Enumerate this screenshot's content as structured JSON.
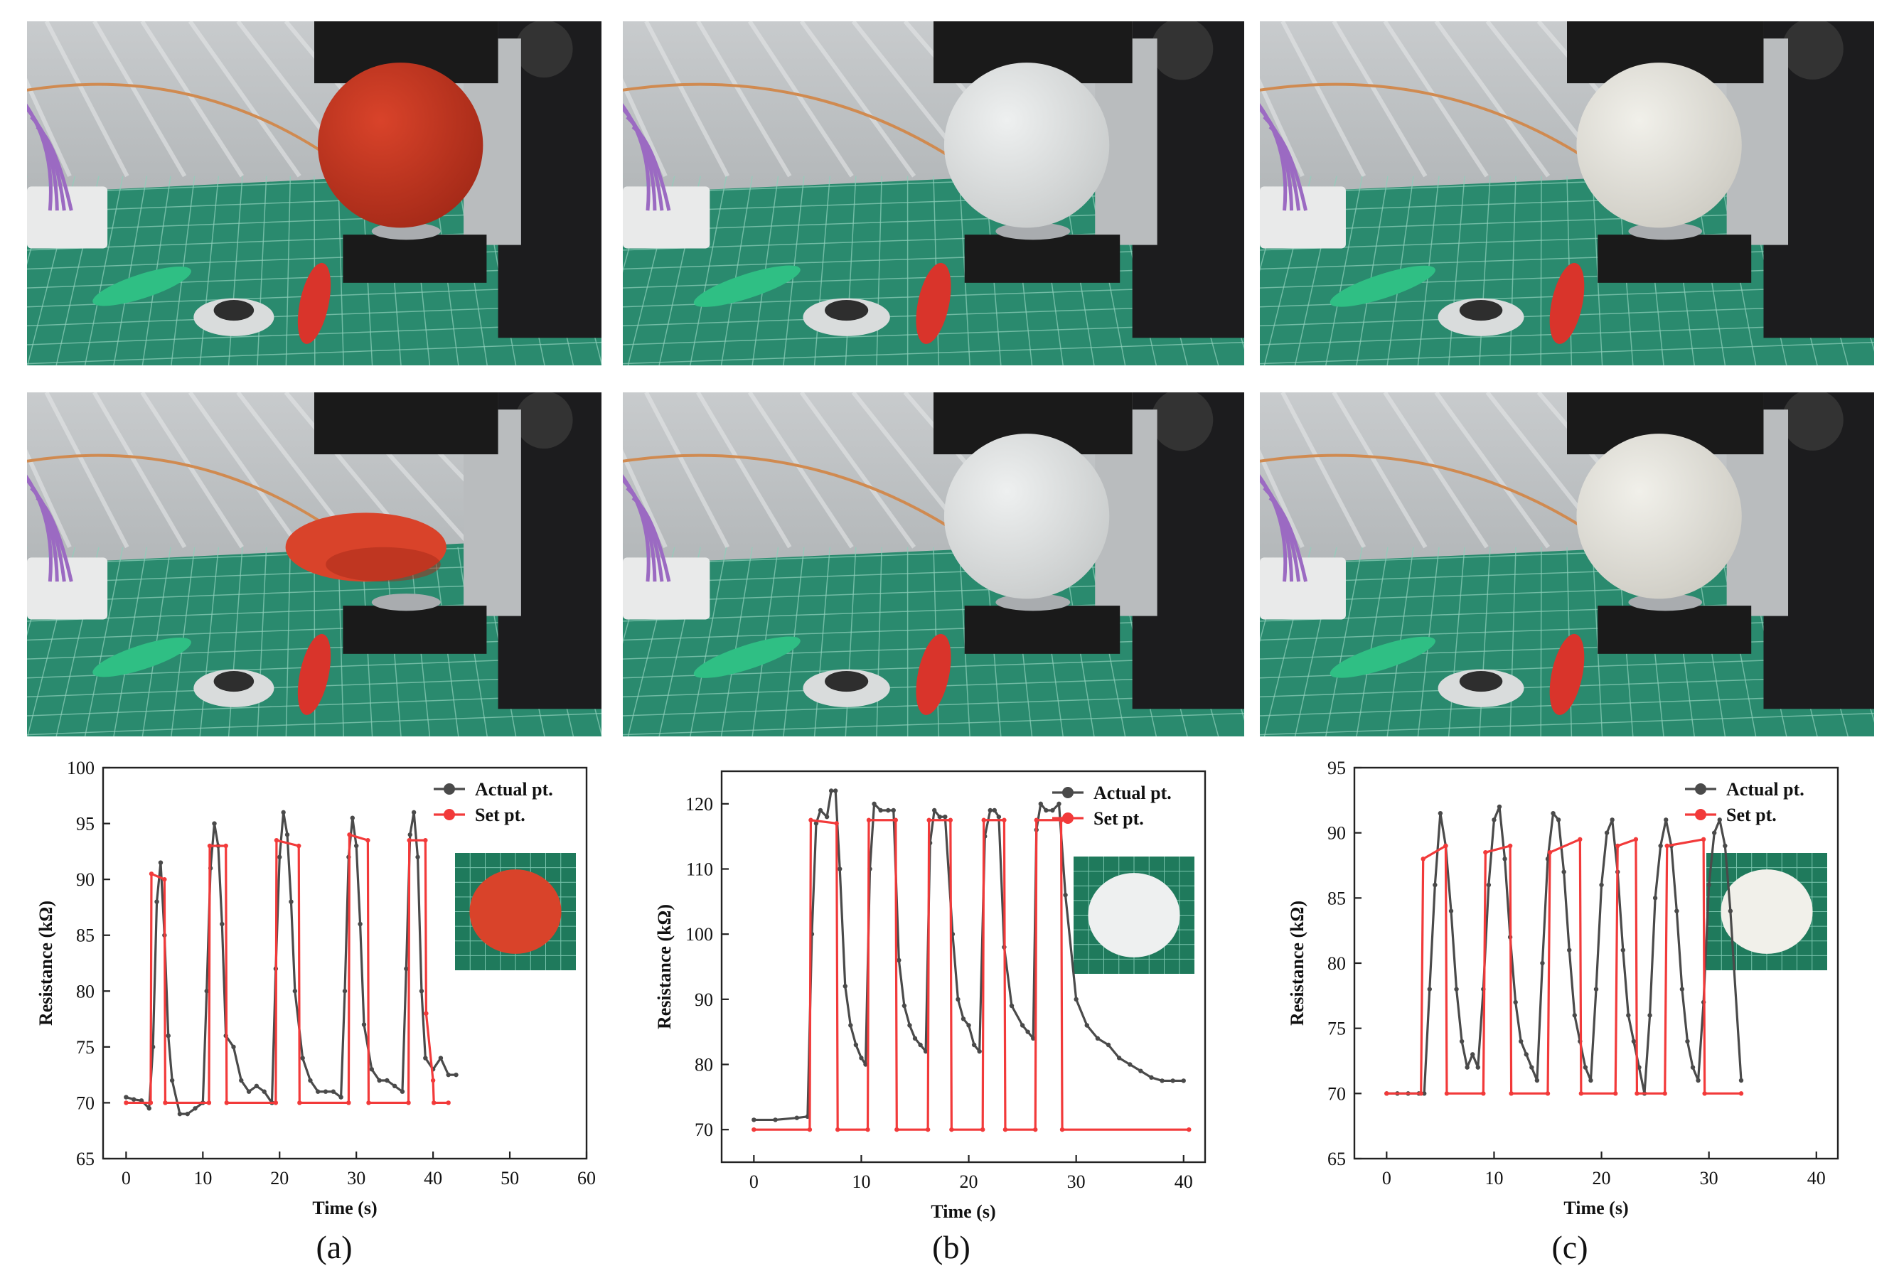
{
  "panels": [
    {
      "label": "(a)",
      "ball_color": "#d9432a",
      "ball_shade": "#a52a18",
      "inset_bg": "#1f7a5c",
      "squeezed": true
    },
    {
      "label": "(b)",
      "ball_color": "#eef0f0",
      "ball_shade": "#c9cccc",
      "inset_bg": "#1f7a5c",
      "squeezed": false
    },
    {
      "label": "(c)",
      "ball_color": "#f1f0ea",
      "ball_shade": "#cfcdc5",
      "inset_bg": "#1f7a5c",
      "squeezed": false
    }
  ],
  "chart_data": [
    {
      "type": "line",
      "xlabel": "Time (s)",
      "ylabel": "Resistance (kΩ)",
      "xlim": [
        -3,
        60
      ],
      "ylim": [
        65,
        100
      ],
      "xticks": [
        0,
        10,
        20,
        30,
        40,
        50,
        60
      ],
      "yticks": [
        65,
        70,
        75,
        80,
        85,
        90,
        95,
        100
      ],
      "legend": "top-right",
      "series": [
        {
          "name": "Actual pt.",
          "color": "#4a4a4a",
          "x": [
            0,
            1,
            2,
            3,
            3.5,
            4,
            4.5,
            5,
            5.5,
            6,
            7,
            8,
            9,
            10,
            10.5,
            11,
            11.5,
            12,
            12.5,
            13,
            14,
            15,
            16,
            17,
            18,
            19,
            19.5,
            20,
            20.5,
            21,
            21.5,
            22,
            23,
            24,
            25,
            26,
            27,
            28,
            28.5,
            29,
            29.5,
            30,
            30.5,
            31,
            32,
            33,
            34,
            35,
            36,
            36.5,
            37,
            37.5,
            38,
            38.5,
            39,
            40,
            41,
            42,
            43
          ],
          "y": [
            70.5,
            70.3,
            70.2,
            69.5,
            75,
            88,
            91.5,
            85,
            76,
            72,
            69,
            69,
            69.5,
            70,
            80,
            91,
            95,
            93,
            86,
            76,
            75,
            72,
            71,
            71.5,
            71,
            70,
            82,
            92,
            96,
            94,
            88,
            80,
            74,
            72,
            71,
            71,
            71,
            70.5,
            80,
            92,
            95.5,
            93,
            86,
            77,
            73,
            72,
            72,
            71.5,
            71,
            82,
            94,
            96,
            92,
            80,
            74,
            73,
            74,
            72.5,
            72.5
          ]
        },
        {
          "name": "Set pt.",
          "color": "#f23a3a",
          "x": [
            0,
            3.2,
            3.3,
            5,
            5.1,
            10.8,
            10.9,
            13,
            13.1,
            19.5,
            19.6,
            22.5,
            22.6,
            29,
            29.1,
            31.5,
            31.6,
            36.8,
            36.9,
            39,
            39.1,
            40,
            40.1,
            42
          ],
          "y": [
            70,
            70,
            90.5,
            90,
            70,
            70,
            93,
            93,
            70,
            70,
            93.5,
            93,
            70,
            70,
            94,
            93.5,
            70,
            70,
            93.5,
            93.5,
            78,
            72,
            70,
            70
          ]
        }
      ]
    },
    {
      "type": "line",
      "xlabel": "Time (s)",
      "ylabel": "Resistance (kΩ)",
      "xlim": [
        -3,
        42
      ],
      "ylim": [
        65,
        125
      ],
      "xticks": [
        0,
        10,
        20,
        30,
        40
      ],
      "yticks": [
        70,
        80,
        90,
        100,
        110,
        120
      ],
      "legend": "top-right",
      "series": [
        {
          "name": "Actual pt.",
          "color": "#4a4a4a",
          "x": [
            0,
            2,
            4,
            5,
            5.4,
            5.8,
            6.2,
            6.8,
            7.2,
            7.6,
            8,
            8.5,
            9,
            9.5,
            10,
            10.4,
            10.8,
            11.2,
            11.8,
            12.5,
            13,
            13.5,
            14,
            14.5,
            15,
            15.5,
            16,
            16.4,
            16.8,
            17.3,
            17.8,
            18.5,
            19,
            19.5,
            20,
            20.5,
            21,
            21.5,
            22,
            22.4,
            22.8,
            23.3,
            24,
            25,
            25.5,
            26,
            26.3,
            26.7,
            27.2,
            27.8,
            28.4,
            29,
            30,
            31,
            32,
            33,
            34,
            35,
            36,
            37,
            38,
            39,
            40
          ],
          "y": [
            71.5,
            71.5,
            71.8,
            72,
            100,
            117,
            119,
            118,
            122,
            122,
            110,
            92,
            86,
            83,
            81,
            80,
            110,
            120,
            119,
            119,
            119,
            96,
            89,
            86,
            84,
            83,
            82,
            114,
            119,
            118,
            118,
            100,
            90,
            87,
            86,
            83,
            82,
            115,
            119,
            119,
            118,
            98,
            89,
            86,
            85,
            84,
            116,
            120,
            119,
            119,
            120,
            106,
            90,
            86,
            84,
            83,
            81,
            80,
            79,
            78,
            77.5,
            77.5,
            77.5
          ]
        },
        {
          "name": "Set pt.",
          "color": "#f23a3a",
          "x": [
            0,
            5.2,
            5.3,
            7.7,
            7.8,
            10.6,
            10.7,
            13.2,
            13.3,
            16.2,
            16.3,
            18.3,
            18.4,
            21.3,
            21.4,
            23.3,
            23.4,
            26.2,
            26.3,
            28.6,
            28.7,
            40.5
          ],
          "y": [
            70,
            70,
            117.5,
            117,
            70,
            70,
            117.5,
            117.5,
            70,
            70,
            117.5,
            117.5,
            70,
            70,
            117.5,
            117.5,
            70,
            70,
            117.5,
            117.5,
            70,
            70
          ]
        }
      ]
    },
    {
      "type": "line",
      "xlabel": "Time (s)",
      "ylabel": "Resistance (kΩ)",
      "xlim": [
        -3,
        42
      ],
      "ylim": [
        65,
        95
      ],
      "xticks": [
        0,
        10,
        20,
        30,
        40
      ],
      "yticks": [
        65,
        70,
        75,
        80,
        85,
        90,
        95
      ],
      "legend": "top-right",
      "series": [
        {
          "name": "Actual pt.",
          "color": "#4a4a4a",
          "x": [
            0,
            1,
            2,
            3,
            3.5,
            4,
            4.5,
            5,
            5.5,
            6,
            6.5,
            7,
            7.5,
            8,
            8.5,
            9,
            9.5,
            10,
            10.5,
            11,
            11.5,
            12,
            12.5,
            13,
            13.5,
            14,
            14.5,
            15,
            15.5,
            16,
            16.5,
            17,
            17.5,
            18,
            18.5,
            19,
            19.5,
            20,
            20.5,
            21,
            21.5,
            22,
            22.5,
            23,
            23.5,
            24,
            24.5,
            25,
            25.5,
            26,
            26.5,
            27,
            27.5,
            28,
            28.5,
            29,
            29.5,
            30,
            30.5,
            31,
            31.5,
            32,
            33
          ],
          "y": [
            70,
            70,
            70,
            70,
            70,
            78,
            86,
            91.5,
            89,
            84,
            78,
            74,
            72,
            73,
            72,
            78,
            86,
            91,
            92,
            88,
            82,
            77,
            74,
            73,
            72,
            71,
            80,
            88,
            91.5,
            91,
            87,
            81,
            76,
            74,
            72,
            71,
            78,
            86,
            90,
            91,
            87,
            81,
            76,
            74,
            72,
            70,
            76,
            85,
            89,
            91,
            89,
            84,
            78,
            74,
            72,
            71,
            77,
            86,
            90,
            91,
            89,
            84,
            71
          ]
        },
        {
          "name": "Set pt.",
          "color": "#f23a3a",
          "x": [
            0,
            3.2,
            3.4,
            5.5,
            5.6,
            9,
            9.2,
            11.5,
            11.6,
            15,
            15.2,
            18,
            18.1,
            21.3,
            21.5,
            23.2,
            23.3,
            25.9,
            26.1,
            29.5,
            29.6,
            33
          ],
          "y": [
            70,
            70,
            88,
            89,
            70,
            70,
            88.5,
            89,
            70,
            70,
            88.5,
            89.5,
            70,
            70,
            89,
            89.5,
            70,
            70,
            89,
            89.5,
            70,
            70
          ]
        }
      ]
    }
  ]
}
